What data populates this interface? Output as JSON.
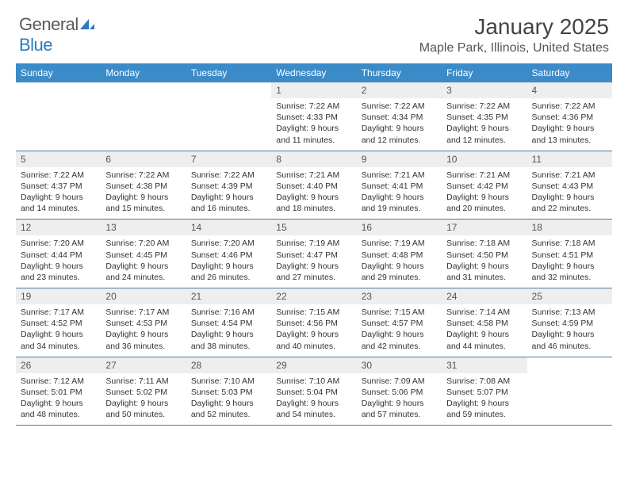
{
  "logo": {
    "text_gray": "General",
    "text_blue": "Blue",
    "icon_color": "#2b7bbf"
  },
  "header": {
    "month_title": "January 2025",
    "location": "Maple Park, Illinois, United States"
  },
  "colors": {
    "header_bg": "#3b8bc9",
    "daynum_bg": "#eeeeee",
    "row_border": "#4a7ba8"
  },
  "days_of_week": [
    "Sunday",
    "Monday",
    "Tuesday",
    "Wednesday",
    "Thursday",
    "Friday",
    "Saturday"
  ],
  "weeks": [
    [
      {
        "n": "",
        "sr": "",
        "ss": "",
        "dl": ""
      },
      {
        "n": "",
        "sr": "",
        "ss": "",
        "dl": ""
      },
      {
        "n": "",
        "sr": "",
        "ss": "",
        "dl": ""
      },
      {
        "n": "1",
        "sr": "7:22 AM",
        "ss": "4:33 PM",
        "dl": "9 hours and 11 minutes."
      },
      {
        "n": "2",
        "sr": "7:22 AM",
        "ss": "4:34 PM",
        "dl": "9 hours and 12 minutes."
      },
      {
        "n": "3",
        "sr": "7:22 AM",
        "ss": "4:35 PM",
        "dl": "9 hours and 12 minutes."
      },
      {
        "n": "4",
        "sr": "7:22 AM",
        "ss": "4:36 PM",
        "dl": "9 hours and 13 minutes."
      }
    ],
    [
      {
        "n": "5",
        "sr": "7:22 AM",
        "ss": "4:37 PM",
        "dl": "9 hours and 14 minutes."
      },
      {
        "n": "6",
        "sr": "7:22 AM",
        "ss": "4:38 PM",
        "dl": "9 hours and 15 minutes."
      },
      {
        "n": "7",
        "sr": "7:22 AM",
        "ss": "4:39 PM",
        "dl": "9 hours and 16 minutes."
      },
      {
        "n": "8",
        "sr": "7:21 AM",
        "ss": "4:40 PM",
        "dl": "9 hours and 18 minutes."
      },
      {
        "n": "9",
        "sr": "7:21 AM",
        "ss": "4:41 PM",
        "dl": "9 hours and 19 minutes."
      },
      {
        "n": "10",
        "sr": "7:21 AM",
        "ss": "4:42 PM",
        "dl": "9 hours and 20 minutes."
      },
      {
        "n": "11",
        "sr": "7:21 AM",
        "ss": "4:43 PM",
        "dl": "9 hours and 22 minutes."
      }
    ],
    [
      {
        "n": "12",
        "sr": "7:20 AM",
        "ss": "4:44 PM",
        "dl": "9 hours and 23 minutes."
      },
      {
        "n": "13",
        "sr": "7:20 AM",
        "ss": "4:45 PM",
        "dl": "9 hours and 24 minutes."
      },
      {
        "n": "14",
        "sr": "7:20 AM",
        "ss": "4:46 PM",
        "dl": "9 hours and 26 minutes."
      },
      {
        "n": "15",
        "sr": "7:19 AM",
        "ss": "4:47 PM",
        "dl": "9 hours and 27 minutes."
      },
      {
        "n": "16",
        "sr": "7:19 AM",
        "ss": "4:48 PM",
        "dl": "9 hours and 29 minutes."
      },
      {
        "n": "17",
        "sr": "7:18 AM",
        "ss": "4:50 PM",
        "dl": "9 hours and 31 minutes."
      },
      {
        "n": "18",
        "sr": "7:18 AM",
        "ss": "4:51 PM",
        "dl": "9 hours and 32 minutes."
      }
    ],
    [
      {
        "n": "19",
        "sr": "7:17 AM",
        "ss": "4:52 PM",
        "dl": "9 hours and 34 minutes."
      },
      {
        "n": "20",
        "sr": "7:17 AM",
        "ss": "4:53 PM",
        "dl": "9 hours and 36 minutes."
      },
      {
        "n": "21",
        "sr": "7:16 AM",
        "ss": "4:54 PM",
        "dl": "9 hours and 38 minutes."
      },
      {
        "n": "22",
        "sr": "7:15 AM",
        "ss": "4:56 PM",
        "dl": "9 hours and 40 minutes."
      },
      {
        "n": "23",
        "sr": "7:15 AM",
        "ss": "4:57 PM",
        "dl": "9 hours and 42 minutes."
      },
      {
        "n": "24",
        "sr": "7:14 AM",
        "ss": "4:58 PM",
        "dl": "9 hours and 44 minutes."
      },
      {
        "n": "25",
        "sr": "7:13 AM",
        "ss": "4:59 PM",
        "dl": "9 hours and 46 minutes."
      }
    ],
    [
      {
        "n": "26",
        "sr": "7:12 AM",
        "ss": "5:01 PM",
        "dl": "9 hours and 48 minutes."
      },
      {
        "n": "27",
        "sr": "7:11 AM",
        "ss": "5:02 PM",
        "dl": "9 hours and 50 minutes."
      },
      {
        "n": "28",
        "sr": "7:10 AM",
        "ss": "5:03 PM",
        "dl": "9 hours and 52 minutes."
      },
      {
        "n": "29",
        "sr": "7:10 AM",
        "ss": "5:04 PM",
        "dl": "9 hours and 54 minutes."
      },
      {
        "n": "30",
        "sr": "7:09 AM",
        "ss": "5:06 PM",
        "dl": "9 hours and 57 minutes."
      },
      {
        "n": "31",
        "sr": "7:08 AM",
        "ss": "5:07 PM",
        "dl": "9 hours and 59 minutes."
      },
      {
        "n": "",
        "sr": "",
        "ss": "",
        "dl": ""
      }
    ]
  ],
  "labels": {
    "sunrise": "Sunrise: ",
    "sunset": "Sunset: ",
    "daylight": "Daylight: "
  }
}
